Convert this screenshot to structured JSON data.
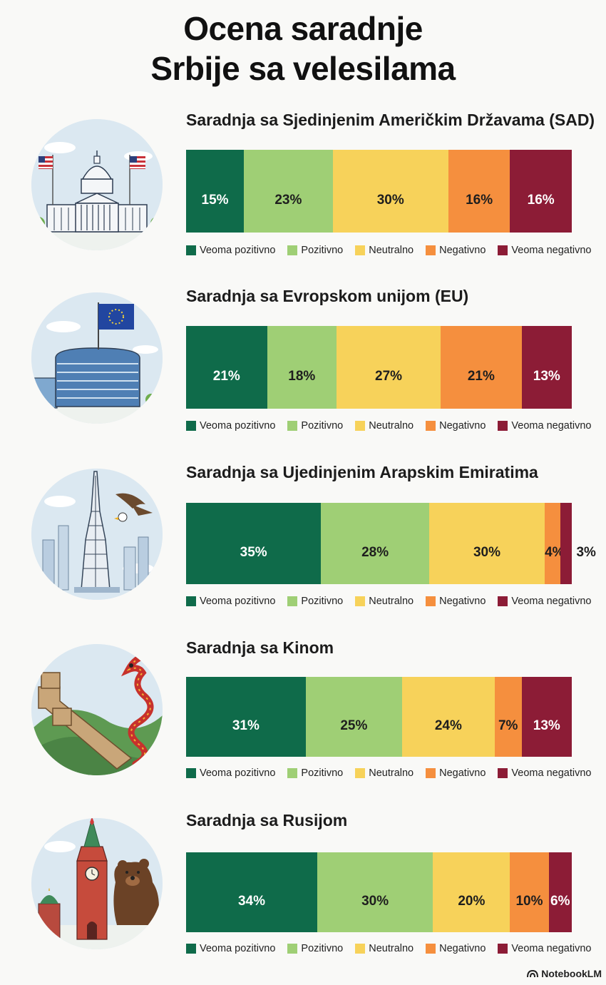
{
  "title": {
    "line1": "Ocena saradnje",
    "line2": "Srbije sa velesilama"
  },
  "legend": [
    "Veoma pozitivno",
    "Pozitivno",
    "Neutralno",
    "Negativno",
    "Veoma negativno"
  ],
  "colors": {
    "Veoma pozitivno": "#0f6b4a",
    "Pozitivno": "#9fcf75",
    "Neutralno": "#f7d25a",
    "Negativno": "#f58f3e",
    "Veoma negativno": "#8c1c36"
  },
  "brand": "NotebookLM",
  "chart_data": [
    {
      "type": "bar",
      "orientation": "horizontal-stacked",
      "title": "Saradnja sa Sjedinjenim Američkim Državama (SAD)",
      "icon": "us-capitol-icon",
      "categories": [
        "Veoma pozitivno",
        "Pozitivno",
        "Neutralno",
        "Negativno",
        "Veoma negativno"
      ],
      "values": [
        15,
        23,
        30,
        16,
        16
      ],
      "labels": [
        "15%",
        "23%",
        "30%",
        "16%",
        "16%"
      ],
      "unit": "%"
    },
    {
      "type": "bar",
      "orientation": "horizontal-stacked",
      "title": "Saradnja sa Evropskom unijom (EU)",
      "icon": "eu-parliament-icon",
      "categories": [
        "Veoma pozitivno",
        "Pozitivno",
        "Neutralno",
        "Negativno",
        "Veoma negativno"
      ],
      "values": [
        21,
        18,
        27,
        21,
        13
      ],
      "labels": [
        "21%",
        "18%",
        "27%",
        "21%",
        "13%"
      ],
      "unit": "%"
    },
    {
      "type": "bar",
      "orientation": "horizontal-stacked",
      "title": "Saradnja sa Ujedinjenim Arapskim Emiratima",
      "icon": "burj-khalifa-icon",
      "categories": [
        "Veoma pozitivno",
        "Pozitivno",
        "Neutralno",
        "Negativno",
        "Veoma negativno"
      ],
      "values": [
        35,
        28,
        30,
        4,
        3
      ],
      "labels": [
        "35%",
        "28%",
        "30%",
        "4%",
        "3%"
      ],
      "unit": "%"
    },
    {
      "type": "bar",
      "orientation": "horizontal-stacked",
      "title": "Saradnja sa Kinom",
      "icon": "great-wall-dragon-icon",
      "categories": [
        "Veoma pozitivno",
        "Pozitivno",
        "Neutralno",
        "Negativno",
        "Veoma negativno"
      ],
      "values": [
        31,
        25,
        24,
        7,
        13
      ],
      "labels": [
        "31%",
        "25%",
        "24%",
        "7%",
        "13%"
      ],
      "unit": "%"
    },
    {
      "type": "bar",
      "orientation": "horizontal-stacked",
      "title": "Saradnja sa Rusijom",
      "icon": "kremlin-bear-icon",
      "categories": [
        "Veoma pozitivno",
        "Pozitivno",
        "Neutralno",
        "Negativno",
        "Veoma negativno"
      ],
      "values": [
        34,
        30,
        20,
        10,
        6
      ],
      "labels": [
        "34%",
        "30%",
        "20%",
        "10%",
        "6%"
      ],
      "unit": "%"
    }
  ]
}
